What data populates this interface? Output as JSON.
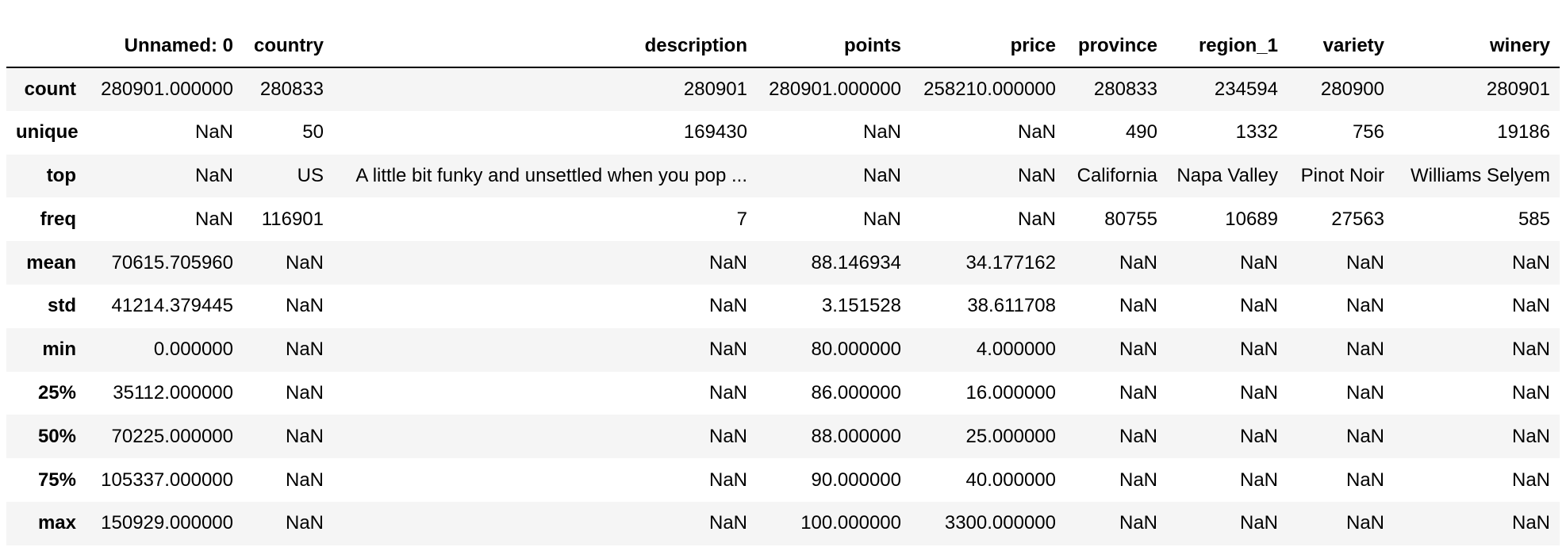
{
  "table": {
    "index_header": "",
    "columns": [
      "Unnamed: 0",
      "country",
      "description",
      "points",
      "price",
      "province",
      "region_1",
      "variety",
      "winery"
    ],
    "rows": [
      {
        "index": "count",
        "cells": [
          "280901.000000",
          "280833",
          "280901",
          "280901.000000",
          "258210.000000",
          "280833",
          "234594",
          "280900",
          "280901"
        ]
      },
      {
        "index": "unique",
        "cells": [
          "NaN",
          "50",
          "169430",
          "NaN",
          "NaN",
          "490",
          "1332",
          "756",
          "19186"
        ]
      },
      {
        "index": "top",
        "cells": [
          "NaN",
          "US",
          "A little bit funky and unsettled when you pop ...",
          "NaN",
          "NaN",
          "California",
          "Napa Valley",
          "Pinot Noir",
          "Williams Selyem"
        ]
      },
      {
        "index": "freq",
        "cells": [
          "NaN",
          "116901",
          "7",
          "NaN",
          "NaN",
          "80755",
          "10689",
          "27563",
          "585"
        ]
      },
      {
        "index": "mean",
        "cells": [
          "70615.705960",
          "NaN",
          "NaN",
          "88.146934",
          "34.177162",
          "NaN",
          "NaN",
          "NaN",
          "NaN"
        ]
      },
      {
        "index": "std",
        "cells": [
          "41214.379445",
          "NaN",
          "NaN",
          "3.151528",
          "38.611708",
          "NaN",
          "NaN",
          "NaN",
          "NaN"
        ]
      },
      {
        "index": "min",
        "cells": [
          "0.000000",
          "NaN",
          "NaN",
          "80.000000",
          "4.000000",
          "NaN",
          "NaN",
          "NaN",
          "NaN"
        ]
      },
      {
        "index": "25%",
        "cells": [
          "35112.000000",
          "NaN",
          "NaN",
          "86.000000",
          "16.000000",
          "NaN",
          "NaN",
          "NaN",
          "NaN"
        ]
      },
      {
        "index": "50%",
        "cells": [
          "70225.000000",
          "NaN",
          "NaN",
          "88.000000",
          "25.000000",
          "NaN",
          "NaN",
          "NaN",
          "NaN"
        ]
      },
      {
        "index": "75%",
        "cells": [
          "105337.000000",
          "NaN",
          "NaN",
          "90.000000",
          "40.000000",
          "NaN",
          "NaN",
          "NaN",
          "NaN"
        ]
      },
      {
        "index": "max",
        "cells": [
          "150929.000000",
          "NaN",
          "NaN",
          "100.000000",
          "3300.000000",
          "NaN",
          "NaN",
          "NaN",
          "NaN"
        ]
      }
    ]
  }
}
